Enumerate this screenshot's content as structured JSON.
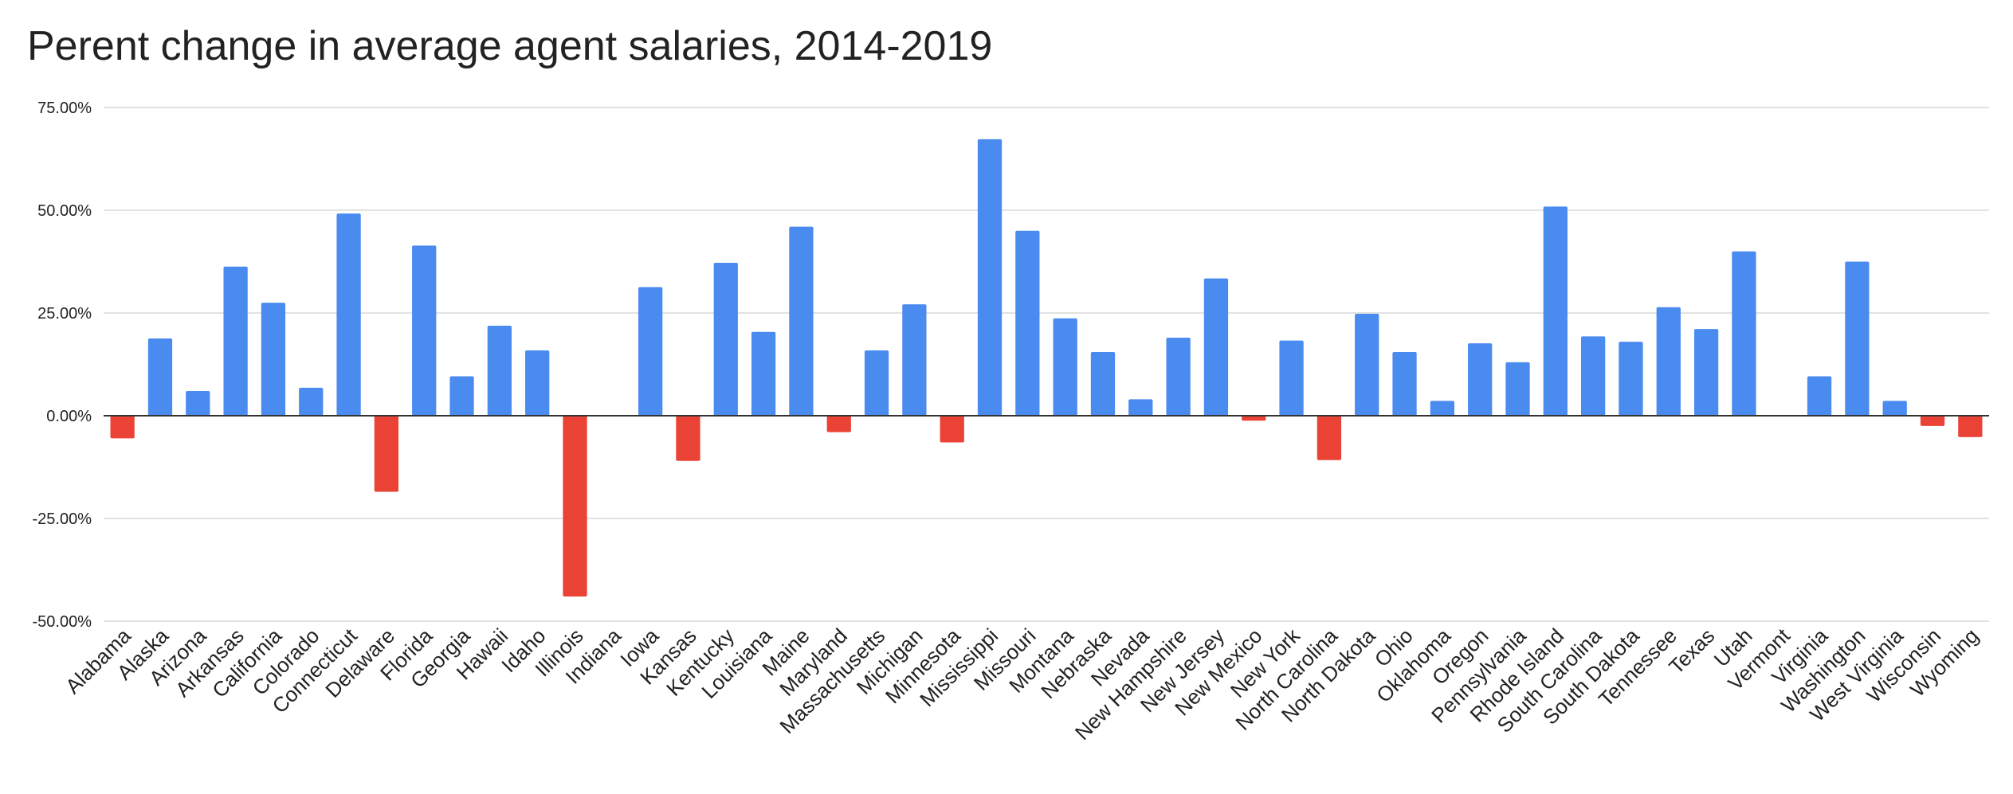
{
  "chart_data": {
    "type": "bar",
    "title": "Perent change in average agent salaries, 2014-2019",
    "xlabel": "",
    "ylabel": "",
    "ylim": [
      -50,
      75
    ],
    "yticks": [
      75,
      50,
      25,
      0,
      -25,
      -50
    ],
    "ytick_labels": [
      "75.00%",
      "50.00%",
      "25.00%",
      "0.00%",
      "-25.00%",
      "-50.00%"
    ],
    "grid": true,
    "legend": "none",
    "colors": {
      "positive": "#4a8bf0",
      "negative": "#ea4335",
      "grid": "#d9d9d9",
      "axis": "#333333"
    },
    "categories": [
      "Alabama",
      "Alaska",
      "Arizona",
      "Arkansas",
      "California",
      "Colorado",
      "Connecticut",
      "Delaware",
      "Florida",
      "Georgia",
      "Hawaii",
      "Idaho",
      "Illinois",
      "Indiana",
      "Iowa",
      "Kansas",
      "Kentucky",
      "Louisiana",
      "Maine",
      "Maryland",
      "Massachusetts",
      "Michigan",
      "Minnesota",
      "Mississippi",
      "Missouri",
      "Montana",
      "Nebraska",
      "Nevada",
      "New Hampshire",
      "New Jersey",
      "New Mexico",
      "New York",
      "North Carolina",
      "North Dakota",
      "Ohio",
      "Oklahoma",
      "Oregon",
      "Pennsylvania",
      "Rhode Island",
      "South Carolina",
      "South Dakota",
      "Tennessee",
      "Texas",
      "Utah",
      "Vermont",
      "Virginia",
      "Washington",
      "West Virginia",
      "Wisconsin",
      "Wyoming"
    ],
    "values": [
      -5.5,
      18.8,
      6.0,
      36.3,
      27.5,
      6.8,
      49.2,
      -18.5,
      41.4,
      9.6,
      21.9,
      15.9,
      -44.0,
      0,
      31.3,
      -11.0,
      37.2,
      20.4,
      46.0,
      -4.0,
      15.9,
      27.1,
      -6.5,
      67.3,
      45.0,
      23.7,
      15.5,
      4.0,
      19.0,
      33.4,
      -1.2,
      18.3,
      -10.8,
      24.8,
      15.5,
      3.6,
      17.6,
      13.0,
      50.9,
      19.3,
      18.0,
      26.4,
      21.1,
      40.0,
      0,
      9.6,
      37.5,
      3.6,
      -2.5,
      -5.2
    ]
  }
}
